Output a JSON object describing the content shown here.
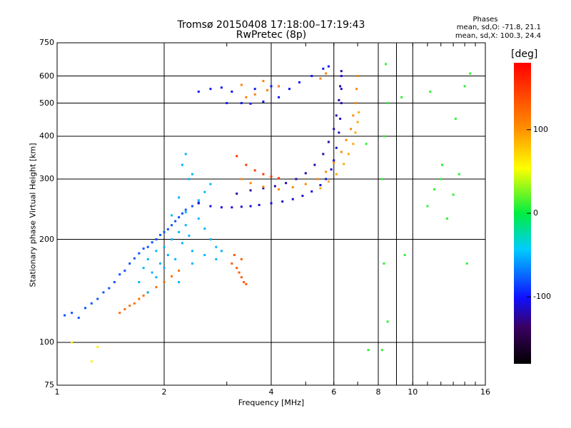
{
  "title_line1": "Tromsø 20150408 17:18:00–17:19:43",
  "title_line2": "RwPretec (8p)",
  "phases": {
    "heading": "Phases",
    "line_o": "mean, sd,O: -71.8, 21.1",
    "line_x": "mean, sd,X: 100.3, 24.4"
  },
  "colorbar": {
    "unit_label": "[deg]",
    "ticks": [
      "100",
      "0",
      "-100"
    ],
    "tick_values": [
      100,
      0,
      -100
    ],
    "range": [
      -180,
      180
    ],
    "colormap": "rainbow"
  },
  "chart_data": {
    "type": "scatter",
    "xlabel": "Frequency [MHz]",
    "ylabel": "Stationary phase Virtual Height [km]",
    "x_scale": "log",
    "y_scale": "log",
    "xlim": [
      1,
      16
    ],
    "ylim": [
      75,
      750
    ],
    "grid": true,
    "xticks": [
      1,
      2,
      4,
      6,
      8,
      10,
      16
    ],
    "xtick_labels": [
      "1",
      "2",
      "4",
      "6",
      "8",
      "10",
      "16"
    ],
    "yticks": [
      75,
      100,
      200,
      300,
      400,
      500,
      600,
      750
    ],
    "ytick_labels": [
      "75",
      "100",
      "200",
      "300",
      "400",
      "500",
      "600",
      "750"
    ],
    "series": [
      {
        "trace": "lower low-band trace",
        "phase_deg": -80,
        "points": [
          [
            1.05,
            120
          ],
          [
            1.1,
            122
          ],
          [
            1.15,
            118
          ],
          [
            1.2,
            126
          ],
          [
            1.25,
            130
          ],
          [
            1.3,
            134
          ],
          [
            1.35,
            140
          ],
          [
            1.4,
            144
          ],
          [
            1.45,
            150
          ],
          [
            1.5,
            158
          ],
          [
            1.55,
            162
          ],
          [
            1.6,
            170
          ],
          [
            1.65,
            176
          ],
          [
            1.7,
            182
          ],
          [
            1.75,
            188
          ],
          [
            1.8,
            190
          ],
          [
            1.85,
            196
          ],
          [
            1.9,
            200
          ],
          [
            1.95,
            206
          ],
          [
            2.0,
            210
          ],
          [
            2.05,
            214
          ],
          [
            2.1,
            220
          ],
          [
            2.15,
            226
          ],
          [
            2.2,
            232
          ],
          [
            2.25,
            238
          ],
          [
            2.3,
            244
          ],
          [
            2.4,
            250
          ],
          [
            2.5,
            256
          ]
        ]
      },
      {
        "trace": "lower low-band trace (X)",
        "phase_deg": 120,
        "points": [
          [
            1.5,
            122
          ],
          [
            1.55,
            125
          ],
          [
            1.6,
            128
          ],
          [
            1.65,
            130
          ],
          [
            1.7,
            134
          ],
          [
            1.75,
            137
          ],
          [
            1.8,
            140
          ],
          [
            1.9,
            145
          ],
          [
            2.0,
            150
          ],
          [
            2.1,
            156
          ],
          [
            2.2,
            162
          ]
        ]
      },
      {
        "trace": "E/F1 scatter cloud",
        "phase_deg": -50,
        "points": [
          [
            1.7,
            150
          ],
          [
            1.75,
            165
          ],
          [
            1.8,
            175
          ],
          [
            1.85,
            160
          ],
          [
            1.9,
            185
          ],
          [
            1.95,
            170
          ],
          [
            2.0,
            190
          ],
          [
            2.05,
            180
          ],
          [
            2.1,
            200
          ],
          [
            2.15,
            175
          ],
          [
            2.2,
            210
          ],
          [
            2.25,
            195
          ],
          [
            2.3,
            220
          ],
          [
            2.35,
            205
          ],
          [
            2.4,
            185
          ],
          [
            2.5,
            230
          ],
          [
            2.6,
            215
          ],
          [
            2.7,
            200
          ],
          [
            2.8,
            190
          ],
          [
            1.8,
            140
          ],
          [
            1.9,
            155
          ],
          [
            2.0,
            165
          ],
          [
            2.2,
            150
          ],
          [
            2.4,
            170
          ],
          [
            2.6,
            180
          ],
          [
            2.8,
            175
          ],
          [
            2.9,
            185
          ],
          [
            2.3,
            240
          ],
          [
            2.5,
            260
          ],
          [
            2.2,
            265
          ],
          [
            2.1,
            235
          ],
          [
            2.35,
            300
          ],
          [
            2.25,
            330
          ],
          [
            2.3,
            355
          ],
          [
            2.4,
            310
          ],
          [
            2.6,
            275
          ],
          [
            2.7,
            290
          ]
        ]
      },
      {
        "trace": "F2 O-mode trace",
        "phase_deg": -110,
        "points": [
          [
            2.5,
            255
          ],
          [
            2.7,
            250
          ],
          [
            2.9,
            248
          ],
          [
            3.1,
            248
          ],
          [
            3.3,
            249
          ],
          [
            3.5,
            250
          ],
          [
            3.7,
            252
          ],
          [
            4.0,
            255
          ],
          [
            4.3,
            258
          ],
          [
            4.6,
            262
          ],
          [
            4.9,
            268
          ],
          [
            5.2,
            276
          ],
          [
            5.5,
            288
          ],
          [
            5.7,
            300
          ],
          [
            5.9,
            320
          ],
          [
            6.0,
            340
          ],
          [
            6.1,
            370
          ],
          [
            6.2,
            410
          ],
          [
            6.25,
            450
          ],
          [
            6.3,
            500
          ],
          [
            6.3,
            550
          ],
          [
            6.3,
            600
          ]
        ]
      },
      {
        "trace": "F2 O-mode trace (upper branch)",
        "phase_deg": -120,
        "points": [
          [
            3.2,
            272
          ],
          [
            3.5,
            278
          ],
          [
            3.8,
            282
          ],
          [
            4.1,
            286
          ],
          [
            4.4,
            292
          ],
          [
            4.7,
            300
          ],
          [
            5.0,
            312
          ],
          [
            5.3,
            330
          ],
          [
            5.6,
            355
          ],
          [
            5.8,
            385
          ],
          [
            6.0,
            420
          ],
          [
            6.1,
            460
          ],
          [
            6.2,
            510
          ],
          [
            6.25,
            560
          ],
          [
            6.3,
            620
          ]
        ]
      },
      {
        "trace": "F2 X-mode trace",
        "phase_deg": 105,
        "points": [
          [
            3.3,
            300
          ],
          [
            3.5,
            292
          ],
          [
            3.8,
            285
          ],
          [
            4.2,
            280
          ],
          [
            4.6,
            284
          ],
          [
            5.0,
            290
          ],
          [
            5.4,
            300
          ],
          [
            5.7,
            315
          ],
          [
            6.0,
            335
          ],
          [
            6.3,
            360
          ],
          [
            6.5,
            390
          ],
          [
            6.7,
            420
          ],
          [
            6.8,
            460
          ],
          [
            6.9,
            500
          ],
          [
            6.95,
            550
          ],
          [
            7.0,
            600
          ]
        ]
      },
      {
        "trace": "F2 X-mode trace (inner)",
        "phase_deg": 90,
        "points": [
          [
            5.5,
            282
          ],
          [
            5.8,
            295
          ],
          [
            6.1,
            310
          ],
          [
            6.4,
            332
          ],
          [
            6.6,
            355
          ],
          [
            6.8,
            380
          ],
          [
            6.9,
            410
          ],
          [
            7.0,
            440
          ],
          [
            7.05,
            470
          ]
        ]
      },
      {
        "trace": "oblique F2 echoes",
        "phase_deg": -100,
        "points": [
          [
            2.5,
            540
          ],
          [
            2.7,
            550
          ],
          [
            2.9,
            555
          ],
          [
            3.1,
            540
          ],
          [
            3.3,
            500
          ],
          [
            3.5,
            498
          ],
          [
            3.8,
            505
          ],
          [
            4.2,
            520
          ],
          [
            4.5,
            550
          ],
          [
            4.8,
            575
          ],
          [
            5.2,
            600
          ],
          [
            5.6,
            630
          ],
          [
            5.8,
            640
          ],
          [
            3.0,
            500
          ],
          [
            3.6,
            550
          ],
          [
            4.0,
            560
          ]
        ]
      },
      {
        "trace": "oblique F2 echoes (X)",
        "phase_deg": 110,
        "points": [
          [
            3.4,
            520
          ],
          [
            3.6,
            530
          ],
          [
            3.9,
            545
          ],
          [
            4.2,
            560
          ],
          [
            5.5,
            590
          ],
          [
            5.7,
            610
          ],
          [
            3.3,
            565
          ],
          [
            3.8,
            580
          ]
        ]
      },
      {
        "trace": "low-height X-mode patch",
        "phase_deg": 130,
        "points": [
          [
            3.1,
            170
          ],
          [
            3.2,
            165
          ],
          [
            3.25,
            160
          ],
          [
            3.3,
            155
          ],
          [
            3.35,
            150
          ],
          [
            3.4,
            148
          ],
          [
            3.3,
            175
          ],
          [
            3.15,
            180
          ]
        ]
      },
      {
        "trace": "X-mode arc near 320 km",
        "phase_deg": 150,
        "points": [
          [
            3.2,
            350
          ],
          [
            3.4,
            330
          ],
          [
            3.6,
            318
          ],
          [
            3.8,
            310
          ],
          [
            4.0,
            305
          ],
          [
            4.2,
            302
          ]
        ]
      },
      {
        "trace": "sparse high-frequency points",
        "phase_deg": 10,
        "points": [
          [
            7.5,
            95
          ],
          [
            8.2,
            95
          ],
          [
            8.3,
            170
          ],
          [
            8.5,
            115
          ],
          [
            8.2,
            300
          ],
          [
            8.3,
            400
          ],
          [
            8.5,
            500
          ],
          [
            9.5,
            180
          ],
          [
            11.0,
            250
          ],
          [
            11.5,
            280
          ],
          [
            12.0,
            300
          ],
          [
            12.5,
            230
          ],
          [
            13.0,
            270
          ],
          [
            13.5,
            310
          ],
          [
            14.0,
            560
          ],
          [
            14.5,
            610
          ],
          [
            14.2,
            170
          ],
          [
            13.2,
            450
          ],
          [
            12.1,
            330
          ],
          [
            11.2,
            540
          ],
          [
            8.4,
            650
          ],
          [
            7.4,
            380
          ],
          [
            9.3,
            520
          ]
        ]
      },
      {
        "trace": "isolated low points",
        "phase_deg": 60,
        "points": [
          [
            1.1,
            100
          ],
          [
            1.3,
            97
          ],
          [
            1.25,
            88
          ]
        ]
      }
    ]
  }
}
